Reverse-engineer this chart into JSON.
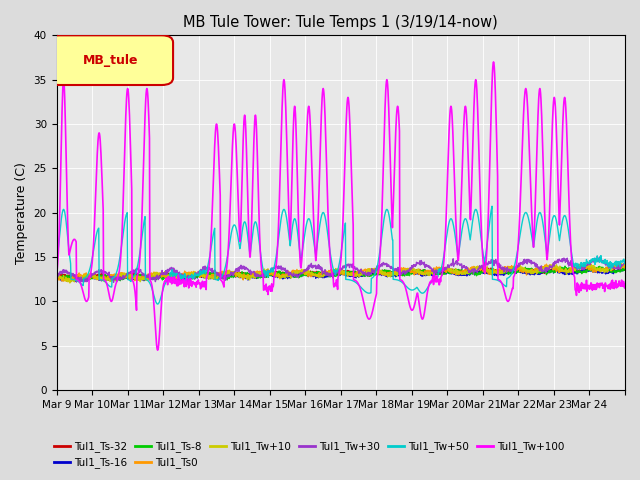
{
  "title": "MB Tule Tower: Tule Temps 1 (3/19/14-now)",
  "ylabel": "Temperature (C)",
  "ylim": [
    0,
    40
  ],
  "yticks": [
    0,
    5,
    10,
    15,
    20,
    25,
    30,
    35,
    40
  ],
  "x_labels": [
    "Mar 9",
    "Mar 10",
    "Mar 11",
    "Mar 12",
    "Mar 13",
    "Mar 14",
    "Mar 15",
    "Mar 16",
    "Mar 17",
    "Mar 18",
    "Mar 19",
    "Mar 20",
    "Mar 21",
    "Mar 22",
    "Mar 23",
    "Mar 24"
  ],
  "bg_color": "#dcdcdc",
  "plot_bg": "#e8e8e8",
  "legend_box_facecolor": "#ffff99",
  "legend_box_edgecolor": "#cc0000",
  "legend_box_text": "MB_tule",
  "legend_box_text_color": "#cc0000",
  "series": [
    {
      "label": "Tul1_Ts-32",
      "color": "#cc0000"
    },
    {
      "label": "Tul1_Ts-16",
      "color": "#0000cc"
    },
    {
      "label": "Tul1_Ts-8",
      "color": "#00cc00"
    },
    {
      "label": "Tul1_Ts0",
      "color": "#ff9900"
    },
    {
      "label": "Tul1_Tw+10",
      "color": "#cccc00"
    },
    {
      "label": "Tul1_Tw+30",
      "color": "#9933cc"
    },
    {
      "label": "Tul1_Tw+50",
      "color": "#00cccc"
    },
    {
      "label": "Tul1_Tw+100",
      "color": "#ff00ff"
    }
  ],
  "num_days": 16,
  "pts_per_day": 96,
  "seed": 7
}
